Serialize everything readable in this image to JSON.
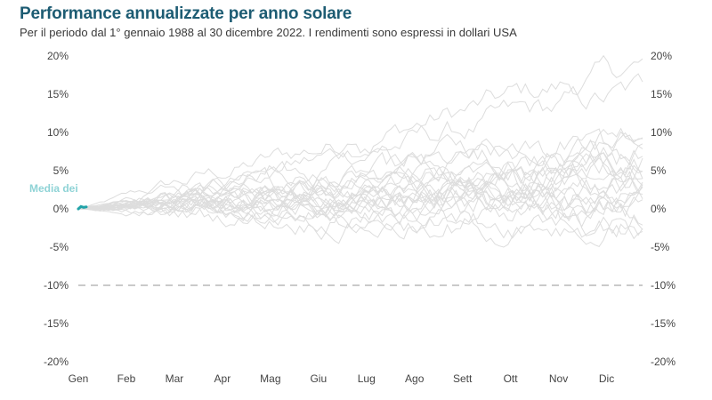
{
  "header": {
    "title": "Performance annualizzate per anno solare",
    "subtitle": "Per il periodo dal 1° gennaio 1988 al 30 dicembre 2022. I rendimenti sono espressi in dollari USA"
  },
  "chart_data": {
    "type": "line",
    "categories": [
      "Gen",
      "Feb",
      "Mar",
      "Apr",
      "Mag",
      "Giu",
      "Lug",
      "Ago",
      "Sett",
      "Ott",
      "Nov",
      "Dic"
    ],
    "y_ticks": [
      "20%",
      "15%",
      "10%",
      "5%",
      "0%",
      "-5%",
      "-10%",
      "-15%",
      "-20%"
    ],
    "ylim": [
      -20,
      20
    ],
    "dual_y_axis": true,
    "reference_line": {
      "y": -10,
      "style": "dashed"
    },
    "grid": false,
    "annual_paths_end_values": [
      18.5,
      15,
      11.5,
      9,
      8,
      7.5,
      7,
      6.5,
      6,
      5.5,
      4.5,
      4,
      3.5,
      3,
      2.5,
      2,
      1.5,
      1,
      0.5,
      0,
      -1,
      -1.5,
      -2.5,
      -3.5
    ],
    "highlight_series": {
      "label": "Media dei",
      "end_value": 0.2,
      "color": "#22a3a8"
    },
    "colors": {
      "paths": "#dddddd",
      "highlight": "#22a3a8",
      "reference_line": "#aaaaaa"
    }
  }
}
